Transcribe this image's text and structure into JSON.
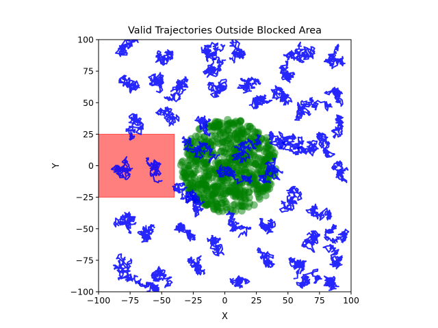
{
  "chart_data": {
    "type": "scatter",
    "title": "Valid Trajectories Outside Blocked Area",
    "xlabel": "X",
    "ylabel": "Y",
    "xlim": [
      -100,
      100
    ],
    "ylim": [
      -100,
      100
    ],
    "xticks": [
      -100,
      -75,
      -50,
      -25,
      0,
      25,
      50,
      75,
      100
    ],
    "yticks": [
      -100,
      -75,
      -50,
      -25,
      0,
      25,
      50,
      75,
      100
    ],
    "xtick_labels": [
      "−100",
      "−75",
      "−50",
      "−25",
      "0",
      "25",
      "50",
      "75",
      "100"
    ],
    "ytick_labels": [
      "−100",
      "−75",
      "−50",
      "−25",
      "0",
      "25",
      "50",
      "75",
      "100"
    ],
    "grid": false,
    "blocked_area": {
      "x": [
        -100,
        -40
      ],
      "y": [
        -25,
        25
      ],
      "color": "#ff0000",
      "alpha": 0.5
    },
    "start_cloud": {
      "center": [
        3,
        0
      ],
      "radius": 38,
      "color": "#008000",
      "alpha": 0.5
    },
    "trajectory_color": "#0000ff",
    "trajectories": [
      {
        "start": [
          -80,
          90
        ],
        "end": [
          -72,
          95
        ],
        "extent": 12
      },
      {
        "start": [
          -50,
          88
        ],
        "end": [
          -45,
          85
        ],
        "extent": 8
      },
      {
        "start": [
          -15,
          90
        ],
        "end": [
          -5,
          95
        ],
        "extent": 10
      },
      {
        "start": [
          5,
          85
        ],
        "end": [
          10,
          95
        ],
        "extent": 10
      },
      {
        "start": [
          -12,
          75
        ],
        "end": [
          -5,
          82
        ],
        "extent": 10
      },
      {
        "start": [
          -75,
          68
        ],
        "end": [
          -70,
          60
        ],
        "extent": 9
      },
      {
        "start": [
          -58,
          68
        ],
        "end": [
          -48,
          62
        ],
        "extent": 10
      },
      {
        "start": [
          -35,
          65
        ],
        "end": [
          -40,
          55
        ],
        "extent": 10
      },
      {
        "start": [
          -10,
          65
        ],
        "end": [
          -5,
          55
        ],
        "extent": 9
      },
      {
        "start": [
          15,
          62
        ],
        "end": [
          25,
          70
        ],
        "extent": 9
      },
      {
        "start": [
          25,
          50
        ],
        "end": [
          35,
          55
        ],
        "extent": 8
      },
      {
        "start": [
          40,
          60
        ],
        "end": [
          48,
          55
        ],
        "extent": 9
      },
      {
        "start": [
          55,
          85
        ],
        "end": [
          65,
          90
        ],
        "extent": 12
      },
      {
        "start": [
          80,
          82
        ],
        "end": [
          88,
          90
        ],
        "extent": 10
      },
      {
        "start": [
          45,
          75
        ],
        "end": [
          52,
          70
        ],
        "extent": 8
      },
      {
        "start": [
          60,
          45
        ],
        "end": [
          75,
          52
        ],
        "extent": 12
      },
      {
        "start": [
          85,
          60
        ],
        "end": [
          92,
          55
        ],
        "extent": 8
      },
      {
        "start": [
          90,
          35
        ],
        "end": [
          95,
          25
        ],
        "extent": 8
      },
      {
        "start": [
          -50,
          40
        ],
        "end": [
          -40,
          35
        ],
        "extent": 9
      },
      {
        "start": [
          -75,
          30
        ],
        "end": [
          -68,
          38
        ],
        "extent": 9
      },
      {
        "start": [
          -20,
          35
        ],
        "end": [
          -15,
          28
        ],
        "extent": 9
      },
      {
        "start": [
          50,
          20
        ],
        "end": [
          58,
          15
        ],
        "extent": 10
      },
      {
        "start": [
          60,
          10
        ],
        "end": [
          70,
          15
        ],
        "extent": 9
      },
      {
        "start": [
          75,
          20
        ],
        "end": [
          85,
          12
        ],
        "extent": 9
      },
      {
        "start": [
          90,
          0
        ],
        "end": [
          95,
          -10
        ],
        "extent": 8
      },
      {
        "start": [
          -85,
          0
        ],
        "end": [
          -75,
          -5
        ],
        "extent": 10
      },
      {
        "start": [
          -60,
          5
        ],
        "end": [
          -55,
          -10
        ],
        "extent": 9
      },
      {
        "start": [
          -30,
          -30
        ],
        "end": [
          -20,
          -35
        ],
        "extent": 9
      },
      {
        "start": [
          -80,
          -45
        ],
        "end": [
          -70,
          -40
        ],
        "extent": 10
      },
      {
        "start": [
          -65,
          -55
        ],
        "end": [
          -55,
          -50
        ],
        "extent": 10
      },
      {
        "start": [
          -35,
          -50
        ],
        "end": [
          -25,
          -55
        ],
        "extent": 9
      },
      {
        "start": [
          -10,
          -60
        ],
        "end": [
          -5,
          -70
        ],
        "extent": 9
      },
      {
        "start": [
          5,
          -45
        ],
        "end": [
          12,
          -55
        ],
        "extent": 9
      },
      {
        "start": [
          30,
          -50
        ],
        "end": [
          40,
          -45
        ],
        "extent": 9
      },
      {
        "start": [
          50,
          -30
        ],
        "end": [
          60,
          -25
        ],
        "extent": 10
      },
      {
        "start": [
          70,
          -35
        ],
        "end": [
          80,
          -40
        ],
        "extent": 9
      },
      {
        "start": [
          85,
          -50
        ],
        "end": [
          92,
          -55
        ],
        "extent": 9
      },
      {
        "start": [
          65,
          -55
        ],
        "end": [
          75,
          -65
        ],
        "extent": 10
      },
      {
        "start": [
          85,
          -70
        ],
        "end": [
          90,
          -80
        ],
        "extent": 9
      },
      {
        "start": [
          55,
          -75
        ],
        "end": [
          60,
          -85
        ],
        "extent": 9
      },
      {
        "start": [
          30,
          -70
        ],
        "end": [
          35,
          -80
        ],
        "extent": 9
      },
      {
        "start": [
          -85,
          -80
        ],
        "end": [
          -75,
          -90
        ],
        "extent": 11
      },
      {
        "start": [
          -55,
          -85
        ],
        "end": [
          -45,
          -90
        ],
        "extent": 9
      },
      {
        "start": [
          -25,
          -75
        ],
        "end": [
          -15,
          -85
        ],
        "extent": 9
      },
      {
        "start": [
          10,
          -90
        ],
        "end": [
          15,
          -95
        ],
        "extent": 8
      },
      {
        "start": [
          60,
          -95
        ],
        "end": [
          70,
          -90
        ],
        "extent": 9
      },
      {
        "start": [
          80,
          -95
        ],
        "end": [
          88,
          -92
        ],
        "extent": 8
      },
      {
        "start": [
          -60,
          -95
        ],
        "end": [
          -50,
          -98
        ],
        "extent": 8
      },
      {
        "start": [
          -30,
          20
        ],
        "end": [
          -10,
          10
        ],
        "extent": 12
      },
      {
        "start": [
          10,
          10
        ],
        "end": [
          25,
          20
        ],
        "extent": 10
      },
      {
        "start": [
          -5,
          -5
        ],
        "end": [
          15,
          -10
        ],
        "extent": 10
      },
      {
        "start": [
          30,
          -10
        ],
        "end": [
          40,
          0
        ],
        "extent": 10
      },
      {
        "start": [
          -40,
          -15
        ],
        "end": [
          -20,
          -25
        ],
        "extent": 8
      },
      {
        "start": [
          35,
          25
        ],
        "end": [
          45,
          15
        ],
        "extent": 8
      }
    ]
  }
}
